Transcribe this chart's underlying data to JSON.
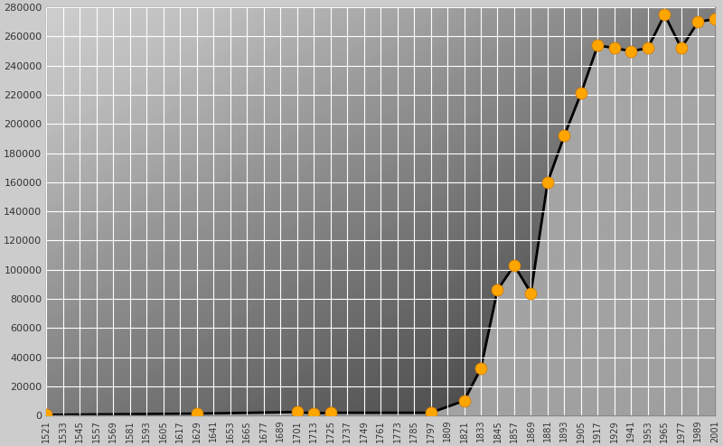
{
  "data_years": [
    1521,
    1629,
    1701,
    1713,
    1725,
    1797,
    1821,
    1833,
    1845,
    1857,
    1869,
    1881,
    1893,
    1905,
    1917,
    1929,
    1941,
    1953,
    1965,
    1977,
    1989,
    2001
  ],
  "data_pop": [
    400,
    1200,
    2300,
    1400,
    1800,
    1800,
    10000,
    32000,
    86000,
    103000,
    84000,
    160000,
    192000,
    221000,
    254000,
    252000,
    250000,
    252000,
    275000,
    252000,
    270000,
    272000
  ],
  "ylim": [
    0,
    280000
  ],
  "yticks": [
    0,
    20000,
    40000,
    60000,
    80000,
    100000,
    120000,
    140000,
    160000,
    180000,
    200000,
    220000,
    240000,
    260000,
    280000
  ],
  "xtick_years": [
    1521,
    1533,
    1545,
    1557,
    1569,
    1581,
    1593,
    1605,
    1617,
    1629,
    1641,
    1653,
    1665,
    1677,
    1689,
    1701,
    1713,
    1725,
    1737,
    1749,
    1761,
    1773,
    1785,
    1797,
    1809,
    1821,
    1833,
    1845,
    1857,
    1869,
    1881,
    1893,
    1905,
    1917,
    1929,
    1941,
    1953,
    1965,
    1977,
    1989,
    2001
  ],
  "line_color": "#000000",
  "fill_color": "#aaaaaa",
  "marker_color": "#FFA500",
  "bg_color": "#cccccc",
  "grid_color": "#ffffff",
  "line_width": 2.0,
  "marker_size": 7
}
